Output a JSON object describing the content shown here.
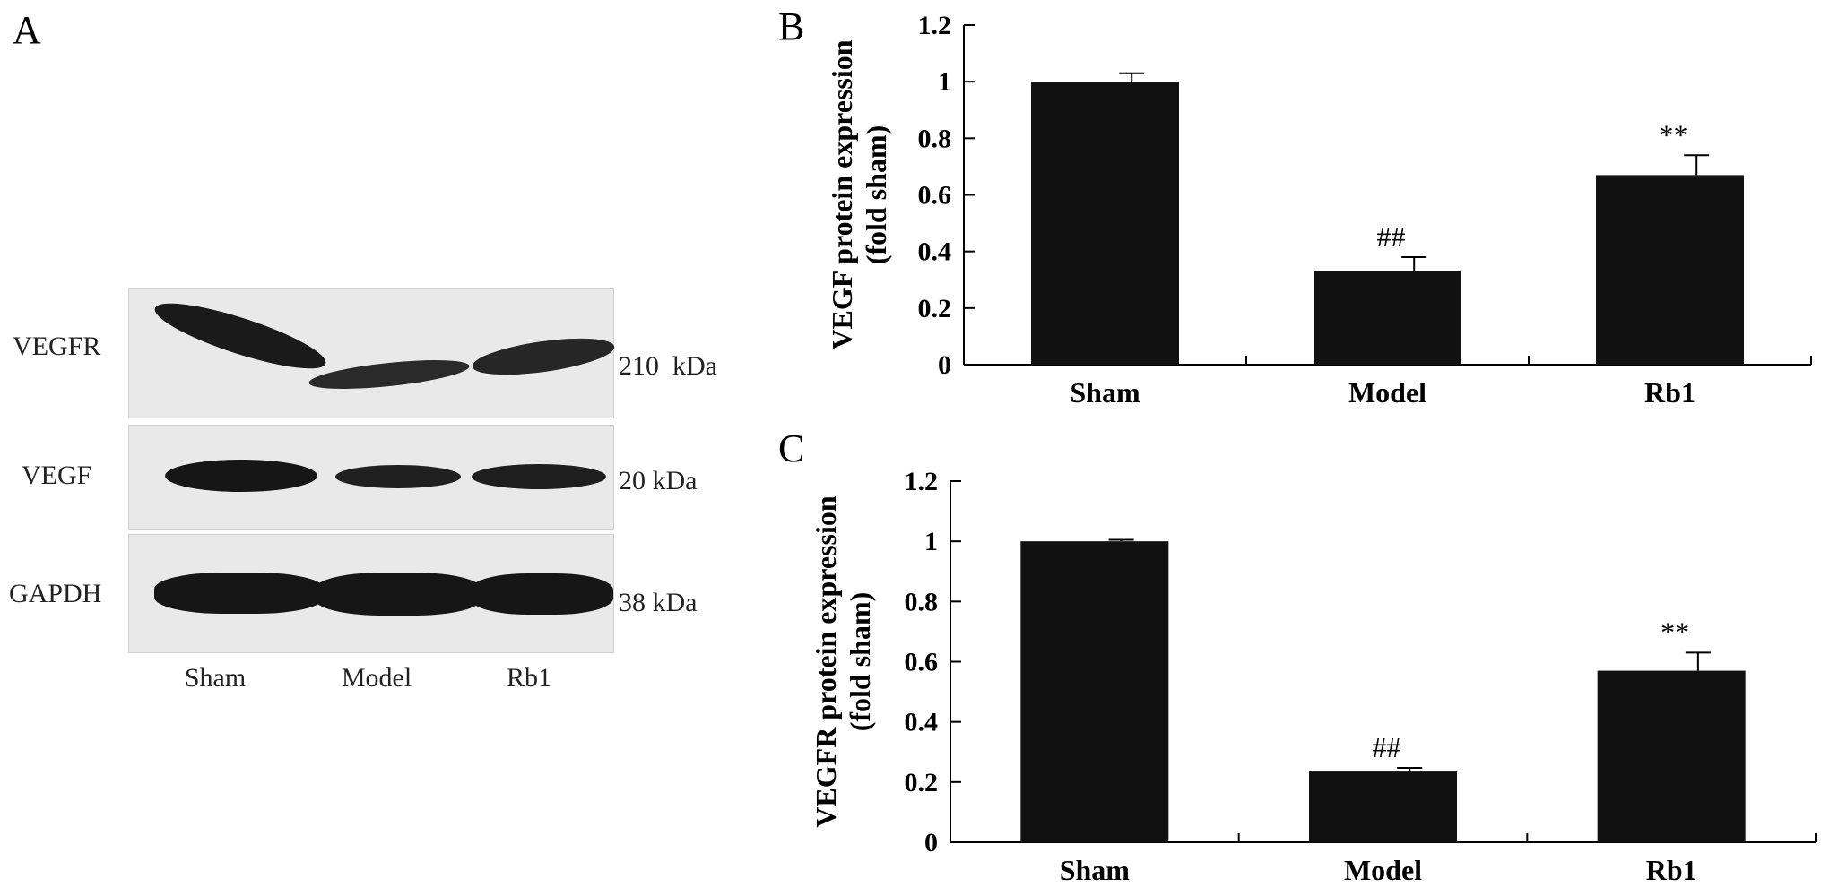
{
  "panels": {
    "a": {
      "letter": "A"
    },
    "b": {
      "letter": "B"
    },
    "c": {
      "letter": "C"
    }
  },
  "blot": {
    "rows": [
      {
        "label": "VEGFR",
        "kda": "210  kDa"
      },
      {
        "label": "VEGF",
        "kda": "20 kDa"
      },
      {
        "label": "GAPDH",
        "kda": "38 kDa"
      }
    ],
    "lanes": [
      "Sham",
      "Model",
      "Rb1"
    ]
  },
  "chart_data": [
    {
      "type": "bar",
      "panel": "B",
      "categories": [
        "Sham",
        "Model",
        "Rb1"
      ],
      "values": [
        1.0,
        0.33,
        0.67
      ],
      "errors": [
        0.03,
        0.05,
        0.07
      ],
      "annotations": [
        "",
        "##",
        "**"
      ],
      "ylabel_line1": "VEGF protein expression",
      "ylabel_line2": "(fold sham)",
      "ylim": [
        0,
        1.2
      ],
      "yticks": [
        "0",
        "0.2",
        "0.4",
        "0.6",
        "0.8",
        "1",
        "1.2"
      ],
      "bar_color": "#111111"
    },
    {
      "type": "bar",
      "panel": "C",
      "categories": [
        "Sham",
        "Model",
        "Rb1"
      ],
      "values": [
        1.0,
        0.235,
        0.57
      ],
      "errors": [
        0.005,
        0.012,
        0.06
      ],
      "annotations": [
        "",
        "##",
        "**"
      ],
      "ylabel_line1": "VEGFR protein expression",
      "ylabel_line2": "(fold sham)",
      "ylim": [
        0,
        1.2
      ],
      "yticks": [
        "0",
        "0.2",
        "0.4",
        "0.6",
        "0.8",
        "1",
        "1.2"
      ],
      "bar_color": "#111111"
    }
  ]
}
